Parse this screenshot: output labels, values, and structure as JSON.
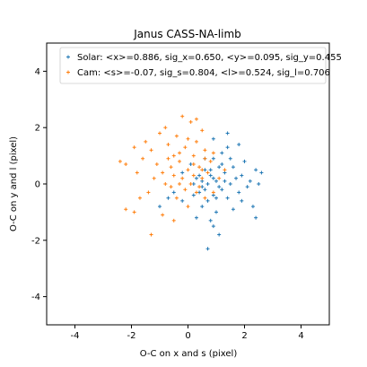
{
  "chart_data": {
    "type": "scatter",
    "title": "Janus   CASS-NA-limb",
    "xlabel": "O-C on x and s (pixel)",
    "ylabel": "O-C on y and l (pixel)",
    "xlim": [
      -5,
      5
    ],
    "ylim": [
      -5,
      5
    ],
    "xticks": [
      -4,
      -2,
      0,
      2,
      4
    ],
    "yticks": [
      -4,
      -2,
      0,
      2,
      4
    ],
    "grid": false,
    "legend_position": "top-right",
    "marker": "plus",
    "series": [
      {
        "name": "Solar: <x>=0.886, sig_x=0.650, <y>=0.095, sig_y=0.455",
        "color": "#1f77b4",
        "mean": [
          0.886,
          0.095
        ],
        "std": [
          0.65,
          0.455
        ],
        "points": [
          [
            0.3,
            0.2
          ],
          [
            0.5,
            -0.1
          ],
          [
            0.8,
            0.3
          ],
          [
            1.0,
            0.1
          ],
          [
            1.2,
            -0.2
          ],
          [
            0.6,
            0.5
          ],
          [
            0.9,
            -0.4
          ],
          [
            1.3,
            0.4
          ],
          [
            1.5,
            0.0
          ],
          [
            0.7,
            -0.6
          ],
          [
            1.1,
            0.6
          ],
          [
            0.4,
            -0.3
          ],
          [
            1.7,
            0.2
          ],
          [
            0.2,
            0.0
          ],
          [
            1.4,
            -0.5
          ],
          [
            1.9,
            0.3
          ],
          [
            2.1,
            -0.1
          ],
          [
            2.4,
            0.5
          ],
          [
            2.6,
            0.4
          ],
          [
            2.3,
            -0.8
          ],
          [
            2.4,
            -1.2
          ],
          [
            1.6,
            -0.9
          ],
          [
            1.0,
            -1.0
          ],
          [
            0.8,
            -1.3
          ],
          [
            1.1,
            -1.8
          ],
          [
            0.3,
            -1.2
          ],
          [
            -0.2,
            -0.6
          ],
          [
            -0.5,
            -0.3
          ],
          [
            -0.7,
            -0.5
          ],
          [
            -0.2,
            0.4
          ],
          [
            0.1,
            0.7
          ],
          [
            0.6,
            0.9
          ],
          [
            1.2,
            1.1
          ],
          [
            1.5,
            0.9
          ],
          [
            1.8,
            1.4
          ],
          [
            1.4,
            1.8
          ],
          [
            0.9,
            1.6
          ],
          [
            0.7,
            -2.3
          ],
          [
            0.9,
            -1.5
          ],
          [
            -1.0,
            -0.8
          ],
          [
            0.5,
            0.1
          ],
          [
            0.7,
            0.0
          ],
          [
            0.9,
            0.2
          ],
          [
            1.1,
            -0.1
          ],
          [
            1.3,
            0.1
          ],
          [
            0.6,
            -0.2
          ],
          [
            0.8,
            0.5
          ],
          [
            1.0,
            -0.5
          ],
          [
            1.6,
            0.6
          ],
          [
            2.0,
            0.8
          ],
          [
            2.2,
            0.1
          ],
          [
            1.8,
            -0.3
          ],
          [
            0.4,
            0.3
          ],
          [
            0.2,
            -0.4
          ],
          [
            1.9,
            -0.6
          ],
          [
            2.5,
            0.0
          ],
          [
            1.2,
            0.7
          ],
          [
            0.5,
            -0.8
          ],
          [
            1.4,
            1.3
          ],
          [
            0.9,
            0.9
          ]
        ]
      },
      {
        "name": "Cam: <s>=-0.07, sig_s=0.804, <l>=0.524, sig_l=0.706",
        "color": "#ff7f0e",
        "mean": [
          -0.07,
          0.524
        ],
        "std": [
          0.804,
          0.706
        ],
        "points": [
          [
            0.0,
            0.5
          ],
          [
            -0.3,
            0.8
          ],
          [
            0.2,
            1.0
          ],
          [
            -0.5,
            0.3
          ],
          [
            0.4,
            0.6
          ],
          [
            -0.1,
            1.3
          ],
          [
            -0.7,
            0.9
          ],
          [
            0.5,
            0.2
          ],
          [
            -0.9,
            0.4
          ],
          [
            0.3,
            1.5
          ],
          [
            -0.4,
            1.7
          ],
          [
            0.6,
            1.2
          ],
          [
            -1.1,
            0.7
          ],
          [
            0.1,
            0.0
          ],
          [
            -0.6,
            -0.1
          ],
          [
            0.7,
            0.4
          ],
          [
            -0.2,
            0.2
          ],
          [
            0.3,
            -0.3
          ],
          [
            -1.3,
            1.2
          ],
          [
            0.1,
            2.2
          ],
          [
            -0.2,
            2.4
          ],
          [
            0.3,
            2.3
          ],
          [
            -0.8,
            2.0
          ],
          [
            0.5,
            1.9
          ],
          [
            -1.5,
            1.5
          ],
          [
            -1.9,
            1.3
          ],
          [
            -2.4,
            0.8
          ],
          [
            -2.2,
            0.7
          ],
          [
            -1.6,
            0.9
          ],
          [
            -1.4,
            -0.3
          ],
          [
            -1.7,
            -0.5
          ],
          [
            -1.9,
            -1.0
          ],
          [
            -2.2,
            -0.9
          ],
          [
            -1.3,
            -1.8
          ],
          [
            -0.9,
            -1.1
          ],
          [
            -0.5,
            -1.3
          ],
          [
            0.0,
            -0.8
          ],
          [
            0.6,
            -0.5
          ],
          [
            0.9,
            -0.3
          ],
          [
            1.1,
            0.2
          ],
          [
            1.3,
            0.5
          ],
          [
            0.8,
            0.8
          ],
          [
            -1.0,
            1.8
          ],
          [
            -0.3,
            1.1
          ],
          [
            0.2,
            0.7
          ],
          [
            -0.6,
            0.6
          ],
          [
            -0.8,
            0.0
          ],
          [
            0.4,
            -0.1
          ],
          [
            -0.1,
            -0.2
          ],
          [
            0.6,
            0.9
          ],
          [
            -1.2,
            0.2
          ],
          [
            -0.4,
            -0.5
          ],
          [
            0.0,
            1.6
          ],
          [
            -0.7,
            1.4
          ],
          [
            0.9,
            1.1
          ],
          [
            -1.8,
            0.4
          ],
          [
            0.2,
            0.3
          ],
          [
            -0.3,
            0.0
          ],
          [
            0.5,
            0.5
          ],
          [
            -0.5,
            1.0
          ]
        ]
      }
    ]
  }
}
